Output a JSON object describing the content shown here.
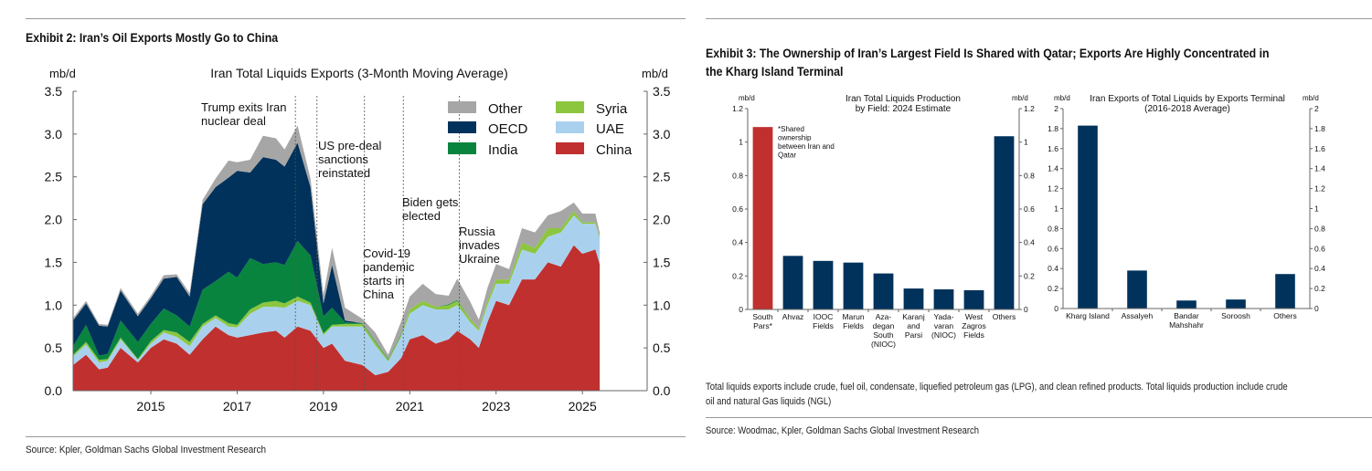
{
  "exhibit2": {
    "title": "Exhibit 2: Iran’s Oil Exports Mostly Go to China",
    "source": "Source: Kpler, Goldman Sachs Global Investment Research"
  },
  "exhibit3": {
    "title_line1": "Exhibit 3: The Ownership of Iran’s Largest Field Is Shared with Qatar; Exports Are Highly Concentrated in",
    "title_line2": "the Kharg Island Terminal",
    "note_line1": "Total liquids exports include crude, fuel oil, condensate, liquefied petroleum gas (LPG), and clean refined products. Total liquids production include crude",
    "note_line2": "oil and natural Gas liquids (NGL)",
    "source": "Source: Woodmac, Kpler, Goldman Sachs Global Investment Research"
  },
  "chart_data": [
    {
      "type": "area",
      "stacked": true,
      "title": "Iran Total Liquids Exports (3-Month Moving Average)",
      "ylabel_left": "mb/d",
      "ylabel_right": "mb/d",
      "ylim": [
        0,
        3.5
      ],
      "yticks": [
        "0.0",
        "0.5",
        "1.0",
        "1.5",
        "2.0",
        "2.5",
        "3.0",
        "3.5"
      ],
      "xticks": [
        "2015",
        "2017",
        "2019",
        "2021",
        "2023",
        "2025"
      ],
      "xlim": [
        2013.2,
        2026.5
      ],
      "grid": false,
      "legend_position": "top-right",
      "legend": [
        {
          "name": "Other",
          "color": "#a6a6a6"
        },
        {
          "name": "Syria",
          "color": "#8cc63f"
        },
        {
          "name": "OECD",
          "color": "#00325b"
        },
        {
          "name": "UAE",
          "color": "#a9d1ee"
        },
        {
          "name": "India",
          "color": "#08843f"
        },
        {
          "name": "China",
          "color": "#c0302f"
        }
      ],
      "x": [
        2013.2,
        2013.5,
        2013.8,
        2014.0,
        2014.3,
        2014.7,
        2015.0,
        2015.3,
        2015.6,
        2015.9,
        2016.2,
        2016.5,
        2016.8,
        2017.0,
        2017.3,
        2017.6,
        2017.9,
        2018.1,
        2018.4,
        2018.7,
        2019.0,
        2019.2,
        2019.5,
        2019.9,
        2020.2,
        2020.5,
        2020.8,
        2021.0,
        2021.3,
        2021.6,
        2021.9,
        2022.1,
        2022.4,
        2022.6,
        2022.8,
        2023.0,
        2023.3,
        2023.6,
        2023.9,
        2024.2,
        2024.5,
        2024.8,
        2025.0,
        2025.3,
        2025.4
      ],
      "series": [
        {
          "name": "China",
          "values": [
            0.3,
            0.42,
            0.25,
            0.27,
            0.5,
            0.33,
            0.5,
            0.6,
            0.55,
            0.42,
            0.6,
            0.75,
            0.65,
            0.62,
            0.65,
            0.68,
            0.7,
            0.62,
            0.75,
            0.7,
            0.5,
            0.55,
            0.35,
            0.3,
            0.18,
            0.22,
            0.38,
            0.6,
            0.65,
            0.55,
            0.6,
            0.7,
            0.6,
            0.5,
            0.8,
            1.05,
            1.0,
            1.3,
            1.3,
            1.5,
            1.45,
            1.7,
            1.6,
            1.65,
            1.48
          ]
        },
        {
          "name": "UAE",
          "values": [
            0.1,
            0.12,
            0.08,
            0.08,
            0.1,
            0.03,
            0.05,
            0.08,
            0.08,
            0.1,
            0.15,
            0.1,
            0.1,
            0.12,
            0.25,
            0.3,
            0.28,
            0.35,
            0.3,
            0.3,
            0.15,
            0.2,
            0.4,
            0.45,
            0.35,
            0.12,
            0.25,
            0.3,
            0.35,
            0.4,
            0.35,
            0.3,
            0.2,
            0.2,
            0.2,
            0.2,
            0.25,
            0.35,
            0.3,
            0.3,
            0.4,
            0.35,
            0.35,
            0.3,
            0.3
          ]
        },
        {
          "name": "Syria",
          "values": [
            0.02,
            0.03,
            0.03,
            0.02,
            0.02,
            0.01,
            0.03,
            0.03,
            0.05,
            0.05,
            0.03,
            0.03,
            0.04,
            0.03,
            0.05,
            0.05,
            0.07,
            0.05,
            0.05,
            0.03,
            0.02,
            0.02,
            0.03,
            0.03,
            0.04,
            0.02,
            0.02,
            0.05,
            0.05,
            0.03,
            0.05,
            0.05,
            0.04,
            0.03,
            0.05,
            0.05,
            0.05,
            0.08,
            0.07,
            0.1,
            0.05,
            0.05,
            0.02,
            0.02,
            0.02
          ]
        },
        {
          "name": "India",
          "values": [
            0.1,
            0.2,
            0.05,
            0.06,
            0.2,
            0.2,
            0.2,
            0.25,
            0.2,
            0.18,
            0.4,
            0.4,
            0.6,
            0.55,
            0.6,
            0.45,
            0.45,
            0.45,
            0.65,
            0.55,
            0.2,
            0.2,
            0.02,
            0.01,
            0.01,
            0.01,
            0.01,
            0,
            0,
            0,
            0.01,
            0.01,
            0,
            0,
            0,
            0,
            0,
            0,
            0,
            0,
            0,
            0,
            0,
            0,
            0
          ]
        },
        {
          "name": "OECD",
          "values": [
            0.3,
            0.25,
            0.35,
            0.32,
            0.35,
            0.3,
            0.3,
            0.35,
            0.45,
            0.35,
            1.0,
            1.1,
            1.1,
            1.25,
            1.0,
            1.25,
            1.2,
            1.15,
            1.15,
            0.8,
            0.15,
            0.5,
            0.02,
            0,
            0,
            0,
            0,
            0,
            0,
            0,
            0,
            0,
            0,
            0,
            0,
            0,
            0,
            0,
            0,
            0,
            0,
            0,
            0,
            0,
            0
          ]
        },
        {
          "name": "Other",
          "values": [
            0.03,
            0.03,
            0.02,
            0.02,
            0.03,
            0.03,
            0.03,
            0.04,
            0.03,
            0.04,
            0.05,
            0.1,
            0.2,
            0.1,
            0.15,
            0.25,
            0.25,
            0.2,
            0.2,
            0.1,
            0.1,
            0.2,
            0.15,
            0.05,
            0.1,
            0.05,
            0.15,
            0.15,
            0.2,
            0.15,
            0.1,
            0.25,
            0.2,
            0.1,
            0.15,
            0.18,
            0.12,
            0.17,
            0.18,
            0.15,
            0.2,
            0.1,
            0.1,
            0.1,
            0.05
          ]
        }
      ],
      "events": [
        {
          "x": 2018.35,
          "label": [
            "Trump exits Iran",
            "nuclear deal"
          ]
        },
        {
          "x": 2018.85,
          "label": [
            "US pre-deal",
            "sanctions",
            "reinstated"
          ]
        },
        {
          "x": 2019.95,
          "label": [
            "Covid-19",
            "pandemic",
            "starts in",
            "China"
          ]
        },
        {
          "x": 2020.85,
          "label": [
            "Biden gets",
            "elected"
          ]
        },
        {
          "x": 2022.15,
          "label": [
            "Russia",
            "invades",
            "Ukraine"
          ]
        }
      ]
    },
    {
      "type": "bar",
      "title": [
        "Iran Total Liquids Production",
        "by Field: 2024 Estimate"
      ],
      "ylabel_left": "mb/d",
      "ylabel_right": "mb/d",
      "ylim": [
        0,
        1.2
      ],
      "yticks": [
        "0",
        "0.2",
        "0.4",
        "0.6",
        "0.8",
        "1",
        "1.2"
      ],
      "categories": [
        [
          "South",
          "Pars*"
        ],
        [
          "Ahvaz"
        ],
        [
          "IOOC",
          "Fields"
        ],
        [
          "Marun",
          "Fields"
        ],
        [
          "Aza-",
          "degan",
          "South",
          "(NIOC)"
        ],
        [
          "Karanj",
          "and",
          "Parsi"
        ],
        [
          "Yada-",
          "varan",
          "(NIOC)"
        ],
        [
          "West",
          "Zagros",
          "Fields"
        ],
        [
          "Others"
        ]
      ],
      "values": [
        1.09,
        0.32,
        0.29,
        0.28,
        0.215,
        0.125,
        0.12,
        0.115,
        1.035
      ],
      "colors": [
        "#c0302f",
        "#00325b",
        "#00325b",
        "#00325b",
        "#00325b",
        "#00325b",
        "#00325b",
        "#00325b",
        "#00325b"
      ],
      "annotation": [
        "*Shared",
        "ownership",
        "between Iran and",
        "Qatar"
      ]
    },
    {
      "type": "bar",
      "title": [
        "Iran Exports of Total Liquids by Exports Terminal",
        "(2016-2018 Average)"
      ],
      "ylabel_left": "mb/d",
      "ylabel_right": "mb/d",
      "ylim": [
        0,
        2
      ],
      "yticks": [
        "0",
        "0.2",
        "0.4",
        "0.6",
        "0.8",
        "1",
        "1.2",
        "1.4",
        "1.6",
        "1.8",
        "2"
      ],
      "categories": [
        [
          "Kharg Island"
        ],
        [
          "Assalyeh"
        ],
        [
          "Bandar",
          "Mahshahr"
        ],
        [
          "Soroosh"
        ],
        [
          "Others"
        ]
      ],
      "values": [
        1.83,
        0.38,
        0.08,
        0.09,
        0.345
      ],
      "colors": [
        "#00325b",
        "#00325b",
        "#00325b",
        "#00325b",
        "#00325b"
      ]
    }
  ]
}
